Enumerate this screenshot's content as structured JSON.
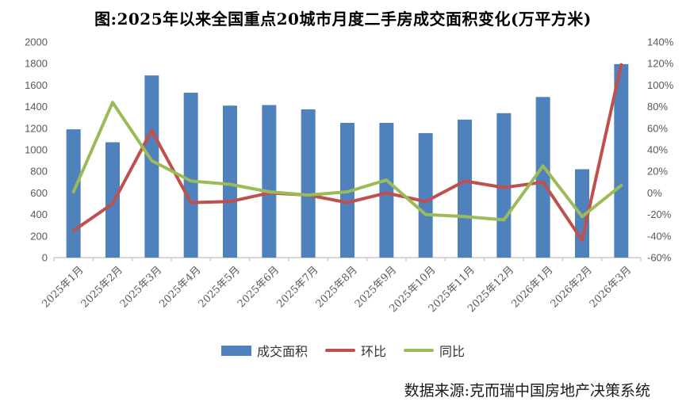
{
  "title": "图:2025年以来全国重点20城市月度二手房成交面积变化(万平方米)",
  "source": "数据来源:克而瑞中国房地产决策系统",
  "legend": [
    {
      "label": "成交面积",
      "type": "bar",
      "color": "#4F81BD"
    },
    {
      "label": "环比",
      "type": "line",
      "color": "#C0504D"
    },
    {
      "label": "同比",
      "type": "line",
      "color": "#9BBB59"
    }
  ],
  "chart_data": {
    "type": "bar+line-combo",
    "title": "图:2025年以来全国重点20城市月度二手房成交面积变化(万平方米)",
    "categories": [
      "2025年1月",
      "2025年2月",
      "2025年3月",
      "2025年4月",
      "2025年5月",
      "2025年6月",
      "2025年7月",
      "2025年8月",
      "2025年9月",
      "2025年10月",
      "2025年11月",
      "2025年12月",
      "2026年1月",
      "2026年2月",
      "2026年3月"
    ],
    "series": [
      {
        "name": "成交面积",
        "type": "bar",
        "axis": "left",
        "color": "#4F81BD",
        "values": [
          1190,
          1070,
          1690,
          1530,
          1410,
          1415,
          1375,
          1250,
          1250,
          1155,
          1280,
          1340,
          1490,
          820,
          1795
        ]
      },
      {
        "name": "环比",
        "type": "line",
        "axis": "right",
        "color": "#C0504D",
        "unit": "%",
        "values": [
          -35,
          -10,
          58,
          -9,
          -8,
          0,
          -2,
          -9,
          0,
          -8,
          11,
          5,
          10,
          -44,
          119
        ]
      },
      {
        "name": "同比",
        "type": "line",
        "axis": "right",
        "color": "#9BBB59",
        "unit": "%",
        "values": [
          1,
          84,
          30,
          11,
          8,
          1,
          -2,
          1,
          12,
          -20,
          -22,
          -25,
          25,
          -22,
          7
        ]
      }
    ],
    "left_axis": {
      "min": 0,
      "max": 2000,
      "step": 200,
      "ticks": [
        "2000",
        "1800",
        "1600",
        "1400",
        "1200",
        "1000",
        "800",
        "600",
        "400",
        "200",
        "0"
      ]
    },
    "right_axis": {
      "min": -60,
      "max": 140,
      "step": 20,
      "ticks": [
        "140%",
        "120%",
        "100%",
        "80%",
        "60%",
        "40%",
        "20%",
        "0%",
        "-20%",
        "-40%",
        "-60%"
      ]
    },
    "grid": false,
    "legend_position": "bottom",
    "axis_line_color": "#BFBFBF",
    "tick_label_color": "#595959"
  }
}
